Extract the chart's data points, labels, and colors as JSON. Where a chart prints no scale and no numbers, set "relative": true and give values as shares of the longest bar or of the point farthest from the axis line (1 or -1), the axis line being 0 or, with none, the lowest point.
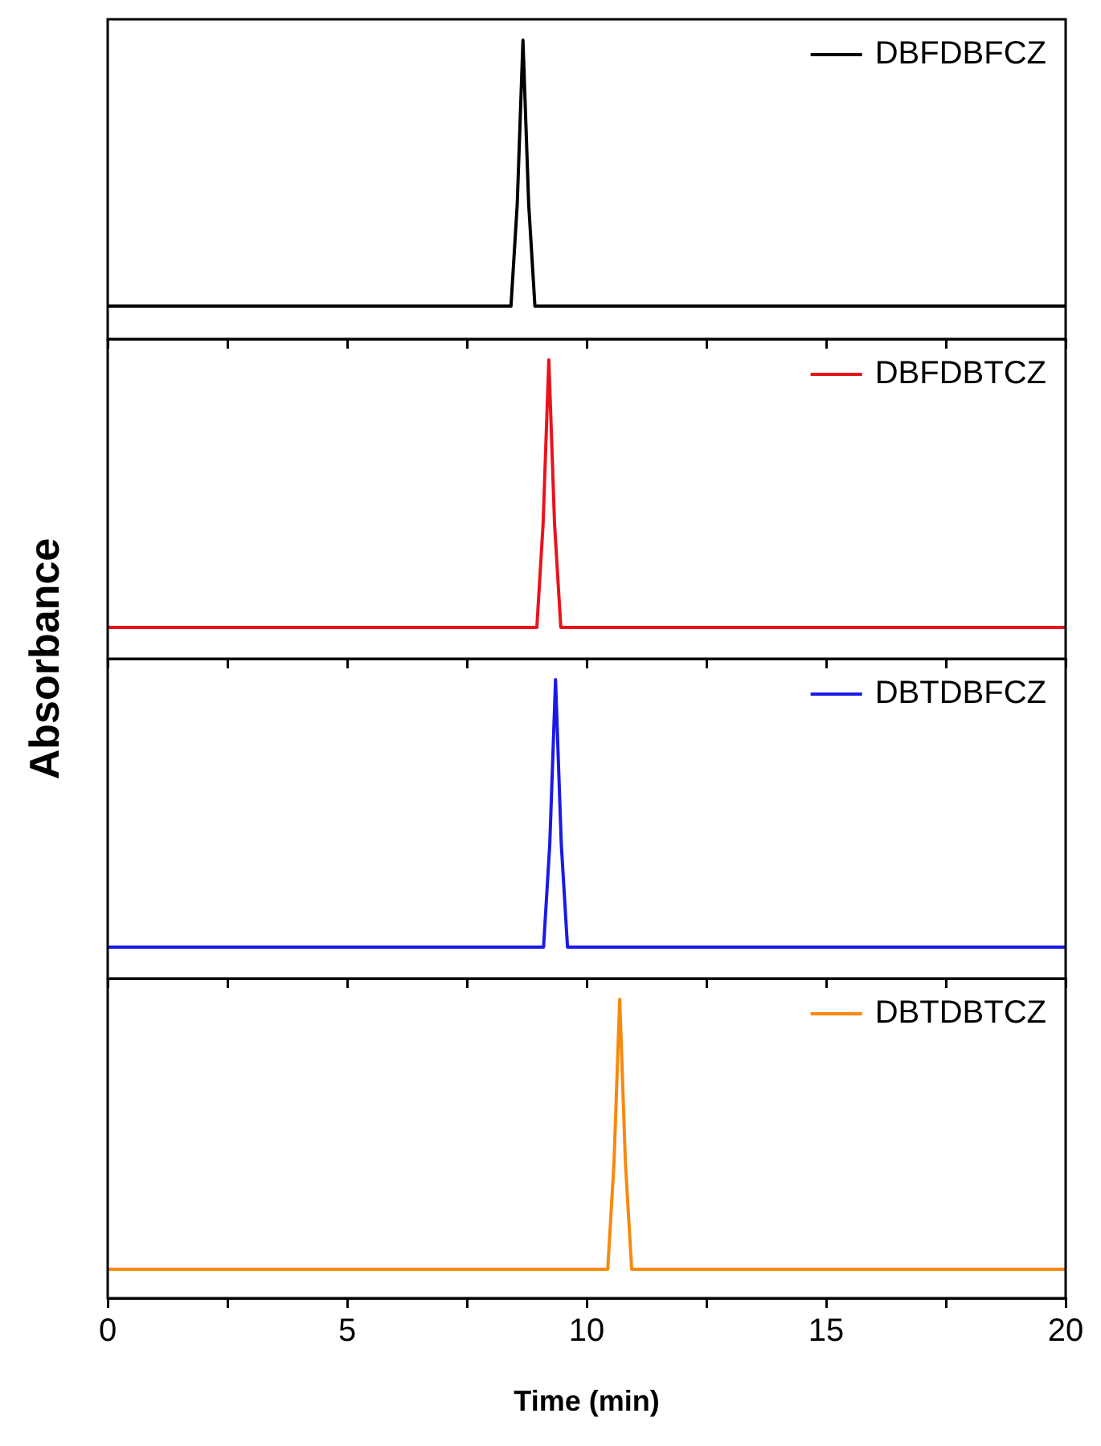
{
  "chart_data": [
    {
      "type": "line",
      "ylabel": "Absorbance",
      "relative": true,
      "legend": "top right",
      "tick_labels": false,
      "marker": "none",
      "line_style": "solid",
      "grid": false,
      "xlim": [
        0,
        20
      ],
      "xticks": [
        0,
        {
          "value": 2.5,
          "label": null
        },
        5,
        {
          "value": 7.5,
          "label": null
        },
        10,
        {
          "value": 12.5,
          "label": null
        },
        15,
        {
          "value": 17.5,
          "label": null
        },
        20
      ],
      "series": [
        {
          "name": "DBFDBFCZ",
          "color": "#000000",
          "x": [
            0,
            8.0,
            8.42,
            8.55,
            8.67,
            8.79,
            8.92,
            20
          ],
          "values": [
            0.11,
            0.11,
            0.11,
            0.45,
            1,
            0.45,
            0.11,
            0.11
          ]
        }
      ]
    },
    {
      "type": "line",
      "relative": true,
      "legend": "top right",
      "tick_labels": false,
      "marker": "none",
      "line_style": "solid",
      "grid": false,
      "xlim": [
        0,
        20
      ],
      "xticks": [
        0,
        {
          "value": 2.5,
          "label": null
        },
        5,
        {
          "value": 7.5,
          "label": null
        },
        10,
        {
          "value": 12.5,
          "label": null
        },
        15,
        {
          "value": 17.5,
          "label": null
        },
        20
      ],
      "series": [
        {
          "name": "DBFDBTCZ",
          "color": "#e8141c",
          "x": [
            0,
            8.5,
            8.96,
            9.09,
            9.21,
            9.33,
            9.46,
            20
          ],
          "values": [
            0.105,
            0.105,
            0.105,
            0.45,
            1,
            0.45,
            0.105,
            0.105
          ]
        }
      ]
    },
    {
      "type": "line",
      "relative": true,
      "legend": "top right",
      "tick_labels": false,
      "marker": "none",
      "line_style": "solid",
      "grid": false,
      "xlim": [
        0,
        20
      ],
      "xticks": [
        0,
        {
          "value": 2.5,
          "label": null
        },
        5,
        {
          "value": 7.5,
          "label": null
        },
        10,
        {
          "value": 12.5,
          "label": null
        },
        15,
        {
          "value": 17.5,
          "label": null
        },
        20
      ],
      "series": [
        {
          "name": "DBTDBFCZ",
          "color": "#1a1ae6",
          "x": [
            0,
            8.5,
            9.1,
            9.23,
            9.35,
            9.47,
            9.6,
            20
          ],
          "values": [
            0.105,
            0.105,
            0.105,
            0.45,
            1,
            0.45,
            0.105,
            0.105
          ]
        }
      ]
    },
    {
      "type": "line",
      "xlabel": "Time (min)",
      "relative": true,
      "legend": "top right",
      "tick_labels": "x",
      "marker": "none",
      "line_style": "solid",
      "grid": false,
      "xlim": [
        0,
        20
      ],
      "xticks": [
        0,
        {
          "value": 2.5,
          "label": null
        },
        5,
        {
          "value": 7.5,
          "label": null
        },
        10,
        {
          "value": 12.5,
          "label": null
        },
        15,
        {
          "value": 17.5,
          "label": null
        },
        20
      ],
      "series": [
        {
          "name": "DBTDBTCZ",
          "color": "#f7890f",
          "x": [
            0,
            10.0,
            10.44,
            10.57,
            10.69,
            10.81,
            10.94,
            20
          ],
          "values": [
            0.097,
            0.097,
            0.097,
            0.45,
            1,
            0.45,
            0.097,
            0.097
          ]
        }
      ]
    }
  ]
}
